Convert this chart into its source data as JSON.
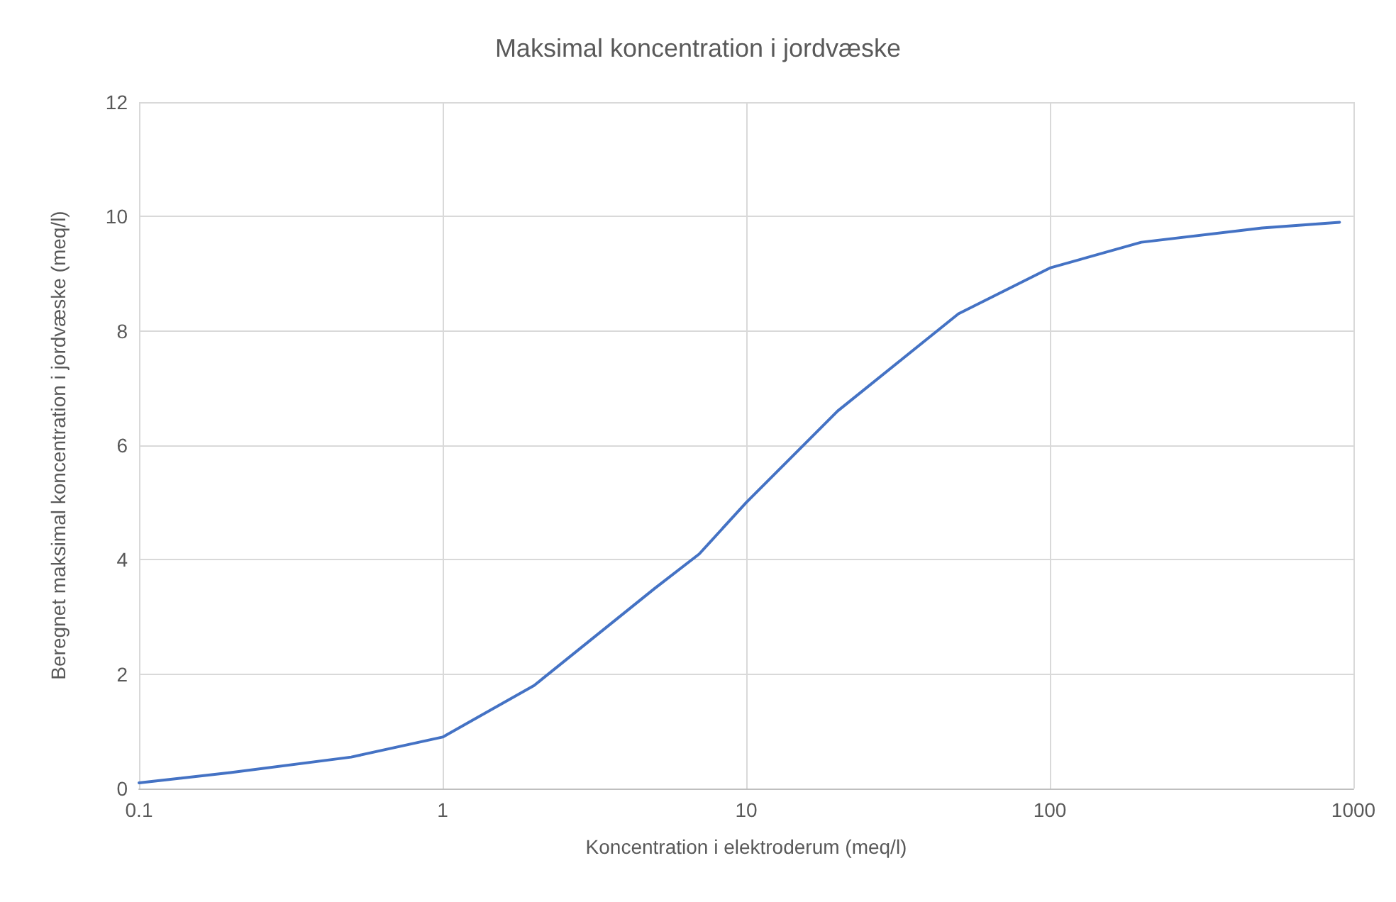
{
  "chart_data": {
    "type": "line",
    "title": "Maksimal koncentration i jordvæske",
    "xlabel": "Koncentration i elektroderum (meq/l)",
    "ylabel": "Beregnet maksimal koncentration i jordvæske (meq/l)",
    "x": [
      0.1,
      0.2,
      0.5,
      1,
      2,
      5,
      7,
      10,
      20,
      50,
      100,
      200,
      500,
      900
    ],
    "series": [
      {
        "color": "#4472c4",
        "values": [
          0.1,
          0.28,
          0.55,
          0.9,
          1.8,
          3.5,
          4.1,
          5.0,
          6.6,
          8.3,
          9.1,
          9.55,
          9.8,
          9.9
        ]
      }
    ],
    "log": "x",
    "xlim": [
      0.1,
      1000
    ],
    "xticks": [
      0.1,
      1,
      10,
      100,
      1000
    ],
    "ylim": [
      0,
      12
    ],
    "yticks": [
      0,
      2,
      4,
      6,
      8,
      10,
      12
    ],
    "grid": true,
    "marker": "none",
    "line_style": "solid"
  }
}
